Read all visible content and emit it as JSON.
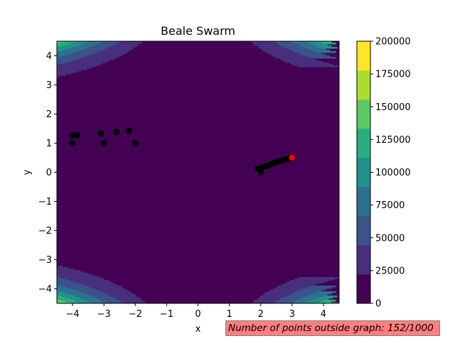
{
  "chart_data": {
    "type": "scatter",
    "title": "Beale Swarm",
    "xlabel": "x",
    "ylabel": "y",
    "xlim": [
      -4.5,
      4.5
    ],
    "ylim": [
      -4.5,
      4.5
    ],
    "xticks": [
      "−4",
      "−3",
      "−2",
      "−1",
      "0",
      "1",
      "2",
      "3",
      "4"
    ],
    "yticks": [
      "−4",
      "−3",
      "−2",
      "−1",
      "0",
      "1",
      "2",
      "3",
      "4"
    ],
    "background": "filled contour of the Beale function",
    "contour_levels": [
      0,
      25000,
      50000,
      75000,
      100000,
      125000,
      150000,
      175000,
      200000
    ],
    "colorbar_ticks": [
      "0",
      "25000",
      "50000",
      "75000",
      "100000",
      "125000",
      "150000",
      "175000",
      "200000"
    ],
    "colormap": [
      "#440154",
      "#472f7d",
      "#3b528b",
      "#2c728e",
      "#21918c",
      "#28ae80",
      "#5ec962",
      "#addc30",
      "#fde725"
    ],
    "points": [
      {
        "x": -4.0,
        "y": 1.27
      },
      {
        "x": -3.85,
        "y": 1.27
      },
      {
        "x": -4.0,
        "y": 1.0
      },
      {
        "x": -3.1,
        "y": 1.33
      },
      {
        "x": -3.0,
        "y": 1.0
      },
      {
        "x": -2.6,
        "y": 1.38
      },
      {
        "x": -2.2,
        "y": 1.43
      },
      {
        "x": -2.0,
        "y": 1.0
      },
      {
        "x": 1.9,
        "y": 0.13
      },
      {
        "x": 2.0,
        "y": 0.0
      },
      {
        "x": 2.05,
        "y": 0.17
      },
      {
        "x": 2.2,
        "y": 0.22
      },
      {
        "x": 2.3,
        "y": 0.27
      },
      {
        "x": 2.4,
        "y": 0.31
      },
      {
        "x": 2.5,
        "y": 0.35
      },
      {
        "x": 2.6,
        "y": 0.38
      },
      {
        "x": 2.7,
        "y": 0.41
      },
      {
        "x": 2.8,
        "y": 0.44
      },
      {
        "x": 2.9,
        "y": 0.47
      }
    ],
    "best_point": {
      "x": 3.0,
      "y": 0.5
    },
    "point_color": "#000000",
    "best_point_color": "#ff0000"
  },
  "status_text": "Number of points outside graph: 152/1000"
}
